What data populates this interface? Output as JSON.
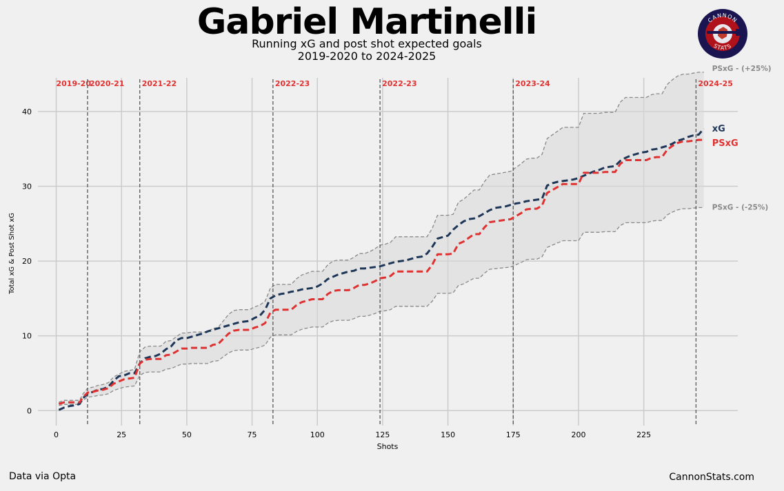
{
  "header": {
    "title": "Gabriel Martinelli",
    "subtitle_line1": "Running xG and post shot expected goals",
    "subtitle_line2": "2019-2020 to 2024-2025"
  },
  "logo": {
    "top_text": "CANNON",
    "bottom_text": "STATS"
  },
  "footer": {
    "source": "Data via Opta",
    "site": "CannonStats.com"
  },
  "colors": {
    "xg": "#1d3557",
    "psxg": "#e03131",
    "band": "#888888",
    "season": "#e03131",
    "background": "#f0f0f0"
  },
  "chart_data": {
    "type": "line",
    "xlabel": "Shots",
    "ylabel": "Total xG & Post Shot xG",
    "xlim": [
      -7,
      261
    ],
    "ylim": [
      -2,
      44.5
    ],
    "xticks": [
      0,
      25,
      50,
      75,
      100,
      125,
      150,
      175,
      200,
      225
    ],
    "yticks": [
      0,
      10,
      20,
      30,
      40
    ],
    "grid": true,
    "season_markers": [
      {
        "label": "2019-20",
        "x": 0
      },
      {
        "label": "2020-21",
        "x": 12
      },
      {
        "label": "2021-22",
        "x": 32
      },
      {
        "label": "2022-23",
        "x": 83
      },
      {
        "label": "2022-23",
        "x": 124
      },
      {
        "label": "2023-24",
        "x": 175
      },
      {
        "label": "2024-25",
        "x": 245
      }
    ],
    "series": [
      {
        "name": "xG",
        "points": [
          [
            1,
            0.1
          ],
          [
            3,
            0.4
          ],
          [
            5,
            0.6
          ],
          [
            7,
            0.7
          ],
          [
            9,
            0.9
          ],
          [
            10,
            1.6
          ],
          [
            12,
            2.2
          ],
          [
            14,
            2.5
          ],
          [
            16,
            2.8
          ],
          [
            18,
            2.9
          ],
          [
            20,
            3.2
          ],
          [
            22,
            4.0
          ],
          [
            24,
            4.6
          ],
          [
            26,
            4.7
          ],
          [
            28,
            5.0
          ],
          [
            30,
            5.0
          ],
          [
            32,
            6.3
          ],
          [
            34,
            7.0
          ],
          [
            36,
            7.2
          ],
          [
            38,
            7.3
          ],
          [
            40,
            7.6
          ],
          [
            42,
            8.2
          ],
          [
            44,
            8.6
          ],
          [
            46,
            9.4
          ],
          [
            48,
            9.7
          ],
          [
            50,
            9.7
          ],
          [
            52,
            9.9
          ],
          [
            54,
            10.1
          ],
          [
            56,
            10.3
          ],
          [
            58,
            10.6
          ],
          [
            60,
            10.8
          ],
          [
            62,
            11.0
          ],
          [
            64,
            11.2
          ],
          [
            66,
            11.4
          ],
          [
            68,
            11.6
          ],
          [
            70,
            11.8
          ],
          [
            72,
            11.9
          ],
          [
            74,
            12.0
          ],
          [
            76,
            12.4
          ],
          [
            78,
            12.7
          ],
          [
            80,
            13.5
          ],
          [
            82,
            15.0
          ],
          [
            84,
            15.4
          ],
          [
            86,
            15.6
          ],
          [
            88,
            15.7
          ],
          [
            90,
            15.9
          ],
          [
            92,
            16.0
          ],
          [
            94,
            16.2
          ],
          [
            96,
            16.3
          ],
          [
            98,
            16.4
          ],
          [
            100,
            16.6
          ],
          [
            102,
            17.0
          ],
          [
            104,
            17.6
          ],
          [
            106,
            17.9
          ],
          [
            108,
            18.2
          ],
          [
            110,
            18.4
          ],
          [
            112,
            18.6
          ],
          [
            114,
            18.7
          ],
          [
            116,
            19.0
          ],
          [
            118,
            19.0
          ],
          [
            120,
            19.1
          ],
          [
            122,
            19.2
          ],
          [
            124,
            19.3
          ],
          [
            126,
            19.5
          ],
          [
            128,
            19.7
          ],
          [
            130,
            19.9
          ],
          [
            132,
            20.0
          ],
          [
            134,
            20.1
          ],
          [
            136,
            20.3
          ],
          [
            138,
            20.5
          ],
          [
            140,
            20.6
          ],
          [
            142,
            21.0
          ],
          [
            144,
            21.9
          ],
          [
            146,
            23.0
          ],
          [
            148,
            23.2
          ],
          [
            150,
            23.4
          ],
          [
            152,
            24.2
          ],
          [
            154,
            24.8
          ],
          [
            156,
            25.3
          ],
          [
            158,
            25.6
          ],
          [
            160,
            25.7
          ],
          [
            162,
            26.0
          ],
          [
            164,
            26.4
          ],
          [
            166,
            26.8
          ],
          [
            168,
            27.1
          ],
          [
            170,
            27.2
          ],
          [
            172,
            27.3
          ],
          [
            174,
            27.5
          ],
          [
            176,
            27.7
          ],
          [
            178,
            27.8
          ],
          [
            180,
            28.0
          ],
          [
            182,
            28.1
          ],
          [
            184,
            28.2
          ],
          [
            186,
            28.3
          ],
          [
            188,
            30.1
          ],
          [
            190,
            30.4
          ],
          [
            192,
            30.6
          ],
          [
            194,
            30.7
          ],
          [
            196,
            30.8
          ],
          [
            198,
            30.9
          ],
          [
            200,
            31.1
          ],
          [
            202,
            31.4
          ],
          [
            204,
            31.7
          ],
          [
            206,
            32.0
          ],
          [
            208,
            32.2
          ],
          [
            210,
            32.5
          ],
          [
            212,
            32.6
          ],
          [
            214,
            32.7
          ],
          [
            216,
            33.4
          ],
          [
            218,
            33.8
          ],
          [
            220,
            34.1
          ],
          [
            222,
            34.3
          ],
          [
            224,
            34.5
          ],
          [
            226,
            34.6
          ],
          [
            228,
            34.9
          ],
          [
            230,
            35.0
          ],
          [
            232,
            35.2
          ],
          [
            234,
            35.4
          ],
          [
            236,
            35.7
          ],
          [
            238,
            36.1
          ],
          [
            240,
            36.3
          ],
          [
            242,
            36.6
          ],
          [
            244,
            36.8
          ],
          [
            246,
            36.9
          ],
          [
            248,
            37.7
          ]
        ]
      },
      {
        "name": "PSxG",
        "points": [
          [
            1,
            0.9
          ],
          [
            3,
            1.1
          ],
          [
            5,
            1.1
          ],
          [
            7,
            1.1
          ],
          [
            9,
            1.1
          ],
          [
            10,
            1.7
          ],
          [
            12,
            2.4
          ],
          [
            14,
            2.5
          ],
          [
            16,
            2.7
          ],
          [
            18,
            2.8
          ],
          [
            20,
            3.0
          ],
          [
            22,
            3.6
          ],
          [
            24,
            3.9
          ],
          [
            26,
            4.2
          ],
          [
            28,
            4.3
          ],
          [
            30,
            4.4
          ],
          [
            32,
            6.3
          ],
          [
            34,
            6.8
          ],
          [
            36,
            6.9
          ],
          [
            38,
            6.9
          ],
          [
            40,
            6.9
          ],
          [
            42,
            7.4
          ],
          [
            44,
            7.5
          ],
          [
            46,
            7.9
          ],
          [
            48,
            8.3
          ],
          [
            50,
            8.3
          ],
          [
            52,
            8.4
          ],
          [
            54,
            8.4
          ],
          [
            56,
            8.4
          ],
          [
            58,
            8.4
          ],
          [
            60,
            8.8
          ],
          [
            62,
            8.9
          ],
          [
            64,
            9.6
          ],
          [
            66,
            10.3
          ],
          [
            68,
            10.7
          ],
          [
            70,
            10.8
          ],
          [
            72,
            10.8
          ],
          [
            74,
            10.8
          ],
          [
            76,
            11.1
          ],
          [
            78,
            11.3
          ],
          [
            80,
            11.7
          ],
          [
            82,
            13.1
          ],
          [
            84,
            13.5
          ],
          [
            86,
            13.5
          ],
          [
            88,
            13.5
          ],
          [
            90,
            13.5
          ],
          [
            92,
            14.1
          ],
          [
            94,
            14.5
          ],
          [
            96,
            14.7
          ],
          [
            98,
            14.9
          ],
          [
            100,
            14.9
          ],
          [
            102,
            14.9
          ],
          [
            104,
            15.6
          ],
          [
            106,
            16.0
          ],
          [
            108,
            16.1
          ],
          [
            110,
            16.1
          ],
          [
            112,
            16.1
          ],
          [
            114,
            16.4
          ],
          [
            116,
            16.8
          ],
          [
            118,
            16.8
          ],
          [
            120,
            17.0
          ],
          [
            122,
            17.3
          ],
          [
            124,
            17.7
          ],
          [
            126,
            17.8
          ],
          [
            128,
            18.0
          ],
          [
            130,
            18.6
          ],
          [
            132,
            18.6
          ],
          [
            134,
            18.6
          ],
          [
            136,
            18.6
          ],
          [
            138,
            18.6
          ],
          [
            140,
            18.6
          ],
          [
            142,
            18.6
          ],
          [
            144,
            19.5
          ],
          [
            146,
            20.9
          ],
          [
            148,
            20.9
          ],
          [
            150,
            20.9
          ],
          [
            152,
            21.0
          ],
          [
            154,
            22.3
          ],
          [
            156,
            22.6
          ],
          [
            158,
            23.1
          ],
          [
            160,
            23.6
          ],
          [
            162,
            23.6
          ],
          [
            164,
            24.5
          ],
          [
            166,
            25.2
          ],
          [
            168,
            25.3
          ],
          [
            170,
            25.4
          ],
          [
            172,
            25.5
          ],
          [
            174,
            25.6
          ],
          [
            176,
            26.0
          ],
          [
            178,
            26.4
          ],
          [
            180,
            26.9
          ],
          [
            182,
            27.0
          ],
          [
            184,
            27.0
          ],
          [
            186,
            27.4
          ],
          [
            188,
            29.1
          ],
          [
            190,
            29.5
          ],
          [
            192,
            29.9
          ],
          [
            194,
            30.3
          ],
          [
            196,
            30.3
          ],
          [
            198,
            30.3
          ],
          [
            200,
            30.3
          ],
          [
            202,
            31.8
          ],
          [
            204,
            31.8
          ],
          [
            206,
            31.8
          ],
          [
            208,
            31.8
          ],
          [
            210,
            31.9
          ],
          [
            212,
            31.9
          ],
          [
            214,
            31.9
          ],
          [
            216,
            33.0
          ],
          [
            218,
            33.5
          ],
          [
            220,
            33.5
          ],
          [
            222,
            33.5
          ],
          [
            224,
            33.5
          ],
          [
            226,
            33.5
          ],
          [
            228,
            33.8
          ],
          [
            230,
            33.9
          ],
          [
            232,
            33.9
          ],
          [
            234,
            34.9
          ],
          [
            236,
            35.4
          ],
          [
            238,
            35.8
          ],
          [
            240,
            36.0
          ],
          [
            242,
            36.0
          ],
          [
            244,
            36.1
          ],
          [
            246,
            36.2
          ],
          [
            248,
            36.2
          ]
        ]
      }
    ],
    "band": {
      "upper_label": "PSxG - (+25%)",
      "lower_label": "PSxG - (-25%)",
      "factor": 0.25
    }
  }
}
